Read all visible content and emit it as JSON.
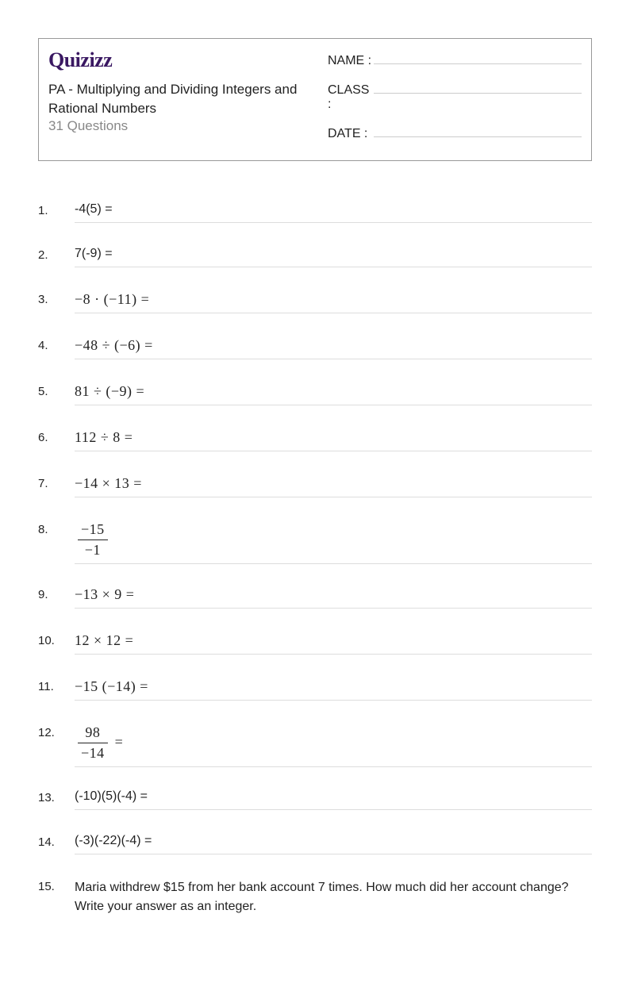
{
  "header": {
    "logo": "Quizizz",
    "title": "PA - Multiplying and Dividing Integers and Rational Numbers",
    "question_count": "31 Questions",
    "fields": {
      "name": "NAME :",
      "class": "CLASS :",
      "date": "DATE  :"
    }
  },
  "questions": [
    {
      "num": "1.",
      "type": "text",
      "content": "-4(5) ="
    },
    {
      "num": "2.",
      "type": "text",
      "content": "7(-9) ="
    },
    {
      "num": "3.",
      "type": "math",
      "content": "−8  · (−11) ="
    },
    {
      "num": "4.",
      "type": "math",
      "content": "−48  ÷  (−6)  ="
    },
    {
      "num": "5.",
      "type": "math",
      "content": "81  ÷ (−9)  ="
    },
    {
      "num": "6.",
      "type": "math",
      "content": "112  ÷  8  ="
    },
    {
      "num": "7.",
      "type": "math",
      "content": "−14  ×  13  ="
    },
    {
      "num": "8.",
      "type": "fraction",
      "numerator": "−15",
      "denominator": "−1",
      "suffix": ""
    },
    {
      "num": "9.",
      "type": "math",
      "content": "−13  ×  9  ="
    },
    {
      "num": "10.",
      "type": "math",
      "content": "12  ×  12  ="
    },
    {
      "num": "11.",
      "type": "math",
      "content": "−15 (−14)  ="
    },
    {
      "num": "12.",
      "type": "fraction",
      "numerator": "98",
      "denominator": "−14",
      "suffix": "  ="
    },
    {
      "num": "13.",
      "type": "text",
      "content": "(-10)(5)(-4) ="
    },
    {
      "num": "14.",
      "type": "text",
      "content": "(-3)(-22)(-4) ="
    },
    {
      "num": "15.",
      "type": "word",
      "content": "Maria withdrew $15 from her bank account 7 times. How much did her account change? Write your answer as an integer."
    }
  ],
  "colors": {
    "text": "#222222",
    "muted": "#888888",
    "border": "#999999",
    "line": "#dddddd",
    "logo": "#3a1862",
    "background": "#ffffff"
  }
}
